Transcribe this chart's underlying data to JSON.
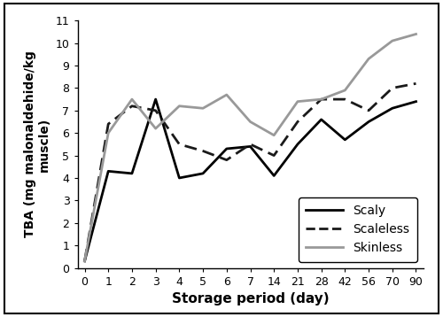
{
  "x_days": [
    0,
    1,
    2,
    3,
    4,
    5,
    6,
    7,
    14,
    21,
    28,
    42,
    56,
    70,
    90
  ],
  "scaly": [
    0.3,
    4.3,
    4.2,
    7.5,
    4.0,
    4.2,
    5.3,
    5.4,
    4.1,
    5.5,
    6.6,
    5.7,
    6.5,
    7.1,
    7.4
  ],
  "scaleless": [
    0.3,
    6.4,
    7.2,
    7.0,
    5.5,
    5.2,
    4.8,
    5.5,
    5.0,
    6.5,
    7.5,
    7.5,
    7.0,
    8.0,
    8.2
  ],
  "skinless": [
    0.3,
    6.0,
    7.5,
    6.2,
    7.2,
    7.1,
    7.7,
    6.5,
    5.9,
    7.4,
    7.5,
    7.9,
    9.3,
    10.1,
    10.4
  ],
  "scaly_color": "#000000",
  "scaleless_color": "#1a1a1a",
  "skinless_color": "#999999",
  "xlabel": "Storage period (day)",
  "ylabel": "TBA (mg malonaldehide/kg\nmuscle)",
  "ylim": [
    0,
    11
  ],
  "yticks": [
    0,
    1,
    2,
    3,
    4,
    5,
    6,
    7,
    8,
    9,
    10,
    11
  ],
  "legend_labels": [
    "Scaly",
    "Scaleless",
    "Skinless"
  ],
  "xlabel_fontsize": 11,
  "ylabel_fontsize": 10,
  "tick_fontsize": 9,
  "legend_fontsize": 10,
  "figure_bg": "#ffffff",
  "outer_border_color": "#000000"
}
